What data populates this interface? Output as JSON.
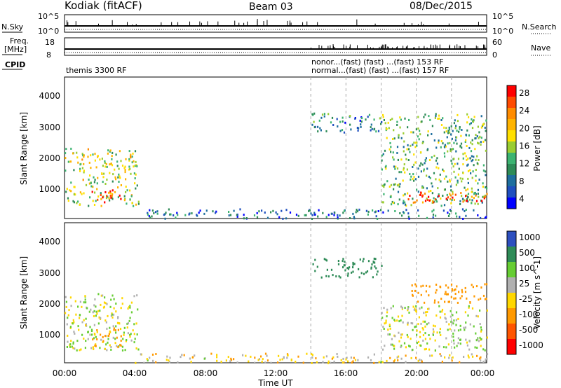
{
  "header": {
    "station": "Kodiak (fitACF)",
    "beam": "Beam 03",
    "date": "08/Dec/2015"
  },
  "strips": {
    "nsky_label": "N.Sky",
    "nsearch_label": "N.Search",
    "freq_label_1": "Freq.",
    "freq_label_2": "[MHz]",
    "nave_label": "Nave",
    "cpid_label": "CPID",
    "noise_left_ticks": [
      "10^5",
      "10^0"
    ],
    "noise_right_ticks": [
      "10^5",
      "10^0"
    ],
    "freq_left_ticks": [
      "18",
      "8"
    ],
    "freq_right_ticks": [
      "60",
      "0"
    ],
    "cpid_entries": [
      {
        "text": "themis 3300 RF",
        "t": 0.1
      },
      {
        "text": "nonor...(fast) (fast) ...(fast) 153 RF",
        "t": 14.1
      },
      {
        "text": "normal...(fast) (fast) ...(fast) 157 RF",
        "t": 14.1
      }
    ],
    "cpid_changes_hours": [
      14.0,
      16.0,
      18.0,
      20.0,
      22.0
    ]
  },
  "axes": {
    "ylabel": "Slant Range [km]",
    "xlabel": "Time UT",
    "x_ticks": [
      "00:00",
      "04:00",
      "08:00",
      "12:00",
      "16:00",
      "20:00",
      "00:00"
    ],
    "y_ticks": [
      "1000",
      "2000",
      "3000",
      "4000"
    ]
  },
  "colorbars": {
    "power": {
      "label": "Power [dB]",
      "ticks": [
        "28",
        "24",
        "20",
        "16",
        "12",
        "8",
        "4"
      ],
      "colors": [
        "#ff0000",
        "#ff4b00",
        "#ff8c00",
        "#ffb400",
        "#ffe000",
        "#9acd32",
        "#3cb371",
        "#2e8b57",
        "#1e6e9e",
        "#1f4fbf",
        "#0000ff"
      ]
    },
    "velocity": {
      "label": "Velocity [m s^-1]",
      "ticks": [
        "1000",
        "500",
        "100",
        "25",
        "-25",
        "-100",
        "-500",
        "-1000"
      ],
      "colors": [
        "#2d4fbf",
        "#2e8b57",
        "#66cd33",
        "#b0b0b0",
        "#ffd700",
        "#ff9900",
        "#ff5500",
        "#ff0000"
      ]
    }
  },
  "chart_data": [
    {
      "type": "heatmap",
      "title": "Power",
      "xlabel": "Time UT",
      "ylabel": "Slant Range [km]",
      "xlim": [
        0,
        24
      ],
      "ylim": [
        180,
        4600
      ],
      "colorbar": "Power [dB]",
      "clim": [
        0,
        30
      ],
      "regions": [
        {
          "t0": 0.0,
          "t1": 4.2,
          "r0": 600,
          "r1": 2400,
          "level": 16
        },
        {
          "t0": 1.5,
          "t1": 3.2,
          "r0": 700,
          "r1": 1100,
          "level": 28
        },
        {
          "t0": 14.0,
          "t1": 18.0,
          "r0": 2900,
          "r1": 3500,
          "level": 8
        },
        {
          "t0": 18.0,
          "t1": 24.0,
          "r0": 600,
          "r1": 3500,
          "level": 12
        },
        {
          "t0": 19.5,
          "t1": 24.0,
          "r0": 700,
          "r1": 1100,
          "level": 26
        },
        {
          "t0": 4.0,
          "t1": 24.0,
          "r0": 200,
          "r1": 500,
          "level": 6
        }
      ]
    },
    {
      "type": "heatmap",
      "title": "Velocity",
      "xlabel": "Time UT",
      "ylabel": "Slant Range [km]",
      "xlim": [
        0,
        24
      ],
      "ylim": [
        180,
        4600
      ],
      "colorbar": "Velocity [m s^-1]",
      "clim": [
        -1000,
        1000
      ],
      "regions": [
        {
          "t0": 0.0,
          "t1": 4.2,
          "r0": 600,
          "r1": 2400,
          "level": 0
        },
        {
          "t0": 1.5,
          "t1": 3.2,
          "r0": 700,
          "r1": 1300,
          "level": -150
        },
        {
          "t0": 14.0,
          "t1": 18.0,
          "r0": 2900,
          "r1": 3500,
          "level": 300
        },
        {
          "t0": 18.0,
          "t1": 24.0,
          "r0": 600,
          "r1": 2000,
          "level": 0
        },
        {
          "t0": 19.5,
          "t1": 24.0,
          "r0": 2100,
          "r1": 2700,
          "level": -300
        },
        {
          "t0": 4.0,
          "t1": 24.0,
          "r0": 200,
          "r1": 500,
          "level": -60
        }
      ]
    }
  ]
}
